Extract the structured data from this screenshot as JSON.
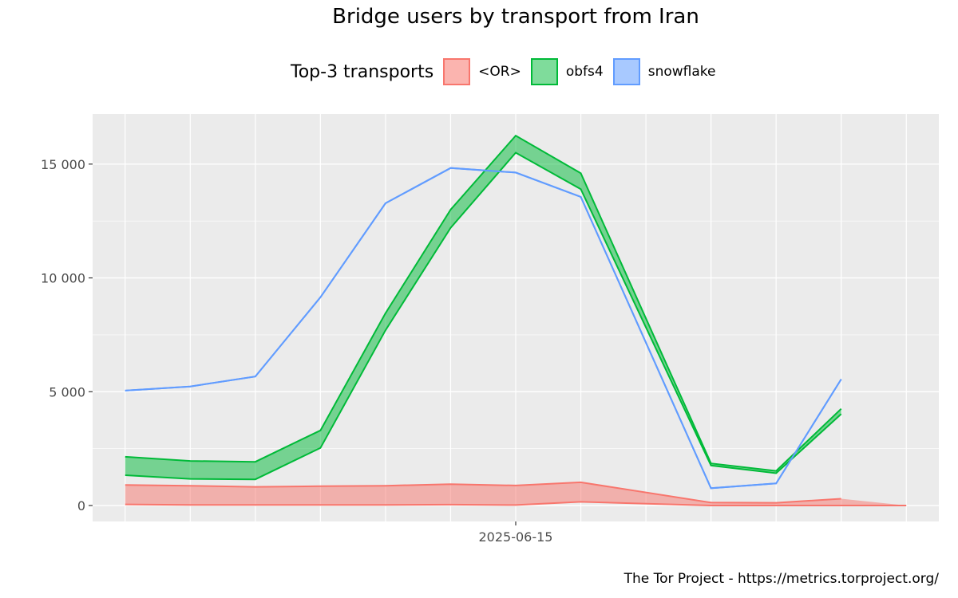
{
  "chart_data": {
    "type": "area",
    "title": "Bridge users by transport from Iran",
    "xlabel": "",
    "ylabel": "",
    "legend": {
      "title": "Top-3 transports",
      "placement": "top"
    },
    "x": [
      "2025-06-09",
      "2025-06-10",
      "2025-06-11",
      "2025-06-12",
      "2025-06-13",
      "2025-06-14",
      "2025-06-15",
      "2025-06-16",
      "2025-06-17",
      "2025-06-18",
      "2025-06-19",
      "2025-06-20",
      "2025-06-21"
    ],
    "x_ticks": [
      "2025-06-15"
    ],
    "ylim": [
      -700,
      17200
    ],
    "y_ticks": [
      0,
      5000,
      10000,
      15000
    ],
    "y_tick_labels": [
      "0",
      "5 000",
      "10 000",
      "15 000"
    ],
    "grid": true,
    "series": [
      {
        "name": "<OR>",
        "color": "#F8766D",
        "low": [
          50,
          30,
          30,
          null,
          30,
          40,
          20,
          160,
          null,
          0,
          0,
          0,
          0
        ],
        "high": [
          900,
          870,
          820,
          850,
          870,
          940,
          880,
          1020,
          null,
          130,
          120,
          300,
          null
        ]
      },
      {
        "name": "obfs4",
        "color": "#00BA38",
        "low": [
          1330,
          1170,
          1150,
          2530,
          7700,
          12200,
          15500,
          13900,
          null,
          1760,
          1420,
          4020,
          null
        ],
        "high": [
          2140,
          1960,
          1920,
          3300,
          8450,
          13000,
          16250,
          14600,
          null,
          1850,
          1520,
          4250,
          null
        ]
      },
      {
        "name": "snowflake",
        "color": "#619CFF",
        "low": [
          5050,
          5230,
          5670,
          9150,
          13280,
          14830,
          14630,
          13560,
          null,
          760,
          970,
          5550,
          null
        ],
        "high": [
          5050,
          5230,
          5670,
          9150,
          13280,
          14830,
          14630,
          13560,
          null,
          760,
          970,
          5550,
          null
        ]
      }
    ]
  },
  "caption": "The Tor Project - https://metrics.torproject.org/"
}
